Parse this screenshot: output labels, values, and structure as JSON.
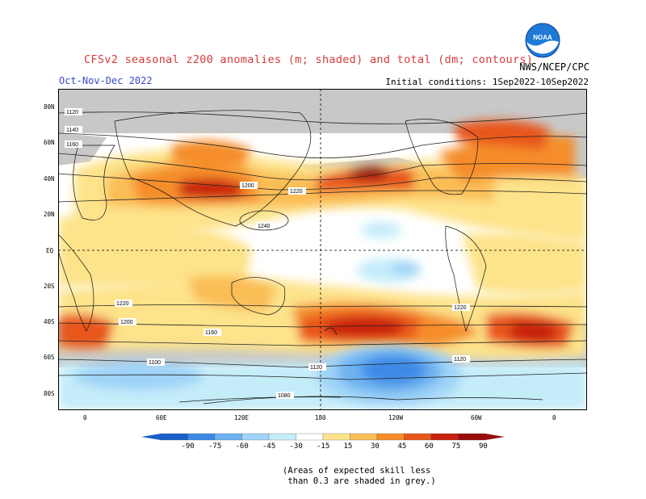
{
  "title": "CFSv2 seasonal z200 anomalies (m; shaded) and total (dm; contours)",
  "season": "Oct-Nov-Dec 2022",
  "initial_conditions": "Initial conditions: 1Sep2022-10Sep2022",
  "agency": "NWS/NCEP/CPC",
  "logo_text": "NOAA",
  "lat_labels": [
    "80N",
    "60N",
    "40N",
    "20N",
    "EQ",
    "20S",
    "40S",
    "60S",
    "80S"
  ],
  "lon_labels": [
    "0",
    "60E",
    "120E",
    "180",
    "120W",
    "60W",
    "0"
  ],
  "contour_labels": [
    "1120",
    "1140",
    "1160",
    "1180",
    "1200",
    "1220",
    "1240",
    "1100",
    "1080"
  ],
  "colorbar": {
    "ticks": [
      "-90",
      "-75",
      "-60",
      "-45",
      "-30",
      "-15",
      "15",
      "30",
      "45",
      "60",
      "75",
      "90"
    ],
    "colors": [
      "#1a5fc8",
      "#3c8ae6",
      "#6db2f0",
      "#9fd3f7",
      "#c4ecf9",
      "#ffffff",
      "#fde38a",
      "#fbbd56",
      "#f58d2a",
      "#e8561a",
      "#c8210f",
      "#9a0d0a"
    ]
  },
  "note": "(Areas of expected skill less\n than 0.3 are shaded in grey.)"
}
